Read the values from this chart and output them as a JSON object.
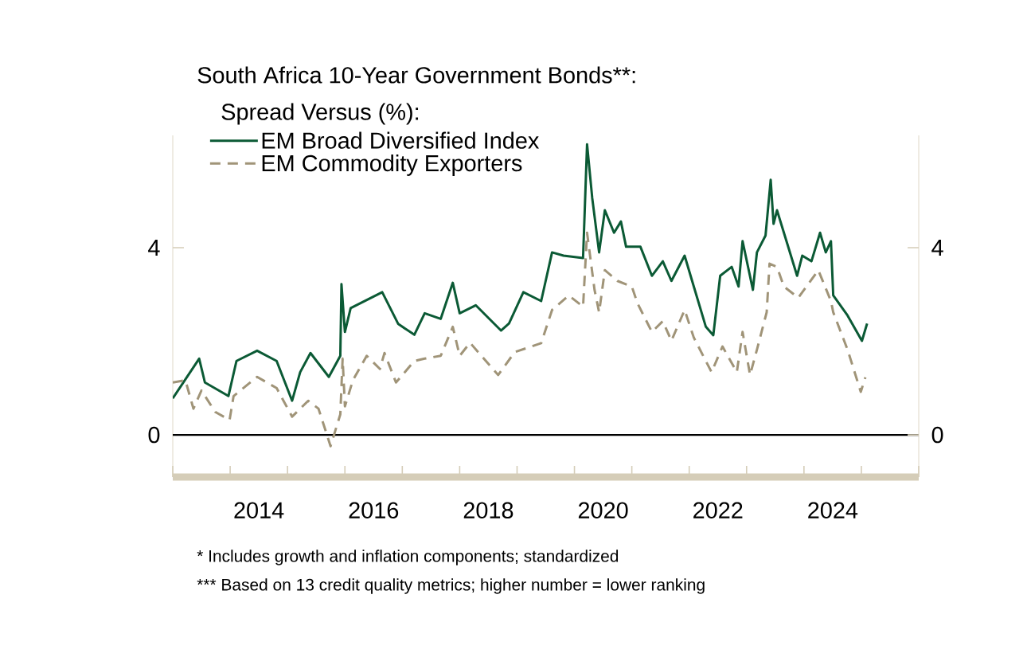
{
  "chart_data": {
    "type": "line",
    "title": "South Africa 10-Year Government Bonds**:",
    "legend_title": "Spread Versus (%):",
    "annotations": [
      "*   Includes growth and inflation components; standardized",
      "*** Based on 13 credit quality metrics; higher number = lower ranking"
    ],
    "legend": "top left",
    "marker": "none",
    "xlim": [
      2013,
      2026
    ],
    "xticks": [
      {
        "value": 2013,
        "label": null
      },
      {
        "value": 2014,
        "label": null
      },
      {
        "value": 2015,
        "label": null
      },
      {
        "value": 2016,
        "label": null
      },
      {
        "value": 2017,
        "label": null
      },
      {
        "value": 2018,
        "label": null
      },
      {
        "value": 2019,
        "label": null
      },
      {
        "value": 2020,
        "label": null
      },
      {
        "value": 2021,
        "label": null
      },
      {
        "value": 2022,
        "label": null
      },
      {
        "value": 2023,
        "label": null
      },
      {
        "value": 2024,
        "label": null
      },
      {
        "value": 2025,
        "label": null
      },
      {
        "value": 2026,
        "label": null
      },
      {
        "value": 2014.5,
        "label": "2014"
      },
      {
        "value": 2016.5,
        "label": "2016"
      },
      {
        "value": 2018.5,
        "label": "2018"
      },
      {
        "value": 2020.5,
        "label": "2020"
      },
      {
        "value": 2022.5,
        "label": "2022"
      },
      {
        "value": 2024.5,
        "label": "2024"
      }
    ],
    "ylim": [
      -0.9,
      6.4
    ],
    "yticks": [
      0,
      4
    ],
    "y2lim": [
      -0.9,
      6.4
    ],
    "y2ticks": [
      0,
      4
    ],
    "ref_lines": [
      {
        "axis": "y",
        "value": 0,
        "color": "#000000"
      }
    ],
    "series": [
      {
        "name": "EM Broad Diversified Index",
        "color": "#0b5a35",
        "line_style": "solid",
        "x": [
          2013.0,
          2013.46,
          2013.56,
          2013.97,
          2014.11,
          2014.47,
          2014.81,
          2015.08,
          2015.22,
          2015.4,
          2015.72,
          2015.92,
          2015.94,
          2016.0,
          2016.1,
          2016.65,
          2016.93,
          2017.21,
          2017.39,
          2017.67,
          2017.88,
          2018.0,
          2018.28,
          2018.72,
          2018.86,
          2019.11,
          2019.42,
          2019.61,
          2019.81,
          2020.15,
          2020.22,
          2020.31,
          2020.43,
          2020.53,
          2020.69,
          2020.81,
          2020.9,
          2021.15,
          2021.35,
          2021.54,
          2021.69,
          2021.92,
          2022.08,
          2022.29,
          2022.42,
          2022.54,
          2022.74,
          2022.86,
          2022.93,
          2023.11,
          2023.18,
          2023.33,
          2023.42,
          2023.47,
          2023.53,
          2023.68,
          2023.88,
          2023.97,
          2024.13,
          2024.28,
          2024.38,
          2024.47,
          2024.51,
          2024.76,
          2025.01,
          2025.1
        ],
        "values": [
          0.78,
          1.63,
          1.12,
          0.83,
          1.58,
          1.8,
          1.58,
          0.73,
          1.34,
          1.75,
          1.24,
          1.69,
          3.22,
          2.2,
          2.71,
          3.05,
          2.37,
          2.14,
          2.6,
          2.48,
          3.25,
          2.6,
          2.77,
          2.23,
          2.38,
          3.05,
          2.86,
          3.9,
          3.83,
          3.78,
          6.21,
          5.06,
          3.9,
          4.8,
          4.32,
          4.56,
          4.02,
          4.02,
          3.4,
          3.71,
          3.29,
          3.83,
          3.17,
          2.31,
          2.13,
          3.4,
          3.59,
          3.17,
          4.14,
          3.1,
          3.9,
          4.26,
          5.45,
          4.51,
          4.8,
          4.2,
          3.4,
          3.83,
          3.71,
          4.32,
          3.9,
          4.14,
          2.98,
          2.55,
          2.01,
          2.38
        ]
      },
      {
        "name": "EM Commodity Exporters",
        "color": "#a09478",
        "line_style": "dashed",
        "x": [
          2013.0,
          2013.22,
          2013.36,
          2013.5,
          2013.74,
          2013.99,
          2014.06,
          2014.47,
          2014.81,
          2015.08,
          2015.36,
          2015.54,
          2015.75,
          2015.92,
          2015.96,
          2016.0,
          2016.14,
          2016.38,
          2016.61,
          2016.69,
          2016.89,
          2017.21,
          2017.39,
          2017.67,
          2017.88,
          2018.0,
          2018.18,
          2018.67,
          2018.96,
          2019.42,
          2019.61,
          2019.9,
          2020.15,
          2020.22,
          2020.35,
          2020.43,
          2020.53,
          2020.75,
          2021.0,
          2021.1,
          2021.35,
          2021.54,
          2021.69,
          2021.92,
          2022.08,
          2022.39,
          2022.58,
          2022.83,
          2022.93,
          2023.06,
          2023.18,
          2023.35,
          2023.4,
          2023.53,
          2023.65,
          2023.9,
          2024.25,
          2024.47,
          2024.51,
          2024.76,
          2024.99,
          2025.07
        ],
        "values": [
          1.12,
          1.17,
          0.56,
          0.95,
          0.49,
          0.32,
          0.83,
          1.24,
          1.0,
          0.39,
          0.73,
          0.56,
          -0.24,
          0.44,
          1.63,
          0.61,
          1.17,
          1.69,
          1.41,
          1.75,
          1.12,
          1.58,
          1.63,
          1.69,
          2.31,
          1.69,
          1.97,
          1.28,
          1.77,
          1.96,
          2.67,
          2.98,
          2.74,
          4.32,
          3.1,
          2.62,
          3.52,
          3.29,
          3.17,
          2.81,
          2.2,
          2.43,
          2.01,
          2.67,
          2.08,
          1.34,
          1.89,
          1.34,
          2.2,
          1.28,
          1.82,
          2.62,
          3.66,
          3.59,
          3.17,
          2.93,
          3.52,
          2.86,
          2.62,
          1.82,
          0.92,
          1.23
        ]
      }
    ]
  }
}
